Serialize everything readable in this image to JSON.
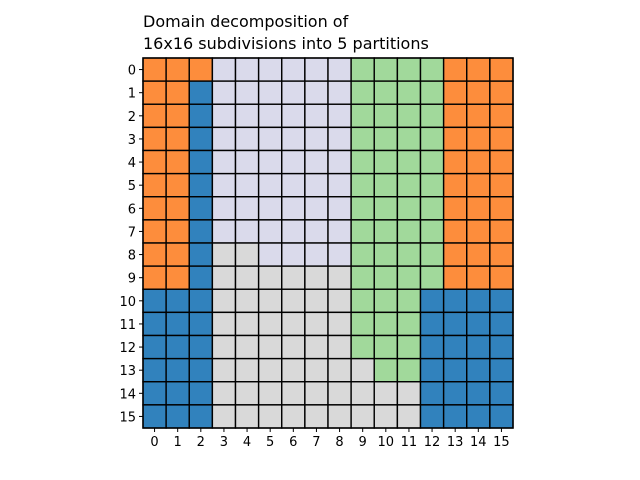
{
  "chart_data": {
    "type": "heatmap",
    "title_lines": [
      "Domain decomposition of",
      "16x16 subdivisions into 5 partitions"
    ],
    "x_ticks": [
      "0",
      "1",
      "2",
      "3",
      "4",
      "5",
      "6",
      "7",
      "8",
      "9",
      "10",
      "11",
      "12",
      "13",
      "14",
      "15"
    ],
    "y_ticks": [
      "0",
      "1",
      "2",
      "3",
      "4",
      "5",
      "6",
      "7",
      "8",
      "9",
      "10",
      "11",
      "12",
      "13",
      "14",
      "15"
    ],
    "partition_colors": [
      "#fd8d3c",
      "#3182bd",
      "#dadaeb",
      "#d9d9d9",
      "#a1d99b"
    ],
    "grid": [
      [
        0,
        0,
        0,
        2,
        2,
        2,
        2,
        2,
        2,
        4,
        4,
        4,
        4,
        0,
        0,
        0
      ],
      [
        0,
        0,
        1,
        2,
        2,
        2,
        2,
        2,
        2,
        4,
        4,
        4,
        4,
        0,
        0,
        0
      ],
      [
        0,
        0,
        1,
        2,
        2,
        2,
        2,
        2,
        2,
        4,
        4,
        4,
        4,
        0,
        0,
        0
      ],
      [
        0,
        0,
        1,
        2,
        2,
        2,
        2,
        2,
        2,
        4,
        4,
        4,
        4,
        0,
        0,
        0
      ],
      [
        0,
        0,
        1,
        2,
        2,
        2,
        2,
        2,
        2,
        4,
        4,
        4,
        4,
        0,
        0,
        0
      ],
      [
        0,
        0,
        1,
        2,
        2,
        2,
        2,
        2,
        2,
        4,
        4,
        4,
        4,
        0,
        0,
        0
      ],
      [
        0,
        0,
        1,
        2,
        2,
        2,
        2,
        2,
        2,
        4,
        4,
        4,
        4,
        0,
        0,
        0
      ],
      [
        0,
        0,
        1,
        2,
        2,
        2,
        2,
        2,
        2,
        4,
        4,
        4,
        4,
        0,
        0,
        0
      ],
      [
        0,
        0,
        1,
        3,
        3,
        2,
        2,
        2,
        2,
        4,
        4,
        4,
        4,
        0,
        0,
        0
      ],
      [
        0,
        0,
        1,
        3,
        3,
        3,
        3,
        3,
        3,
        4,
        4,
        4,
        4,
        0,
        0,
        0
      ],
      [
        1,
        1,
        1,
        3,
        3,
        3,
        3,
        3,
        3,
        4,
        4,
        4,
        1,
        1,
        1,
        1
      ],
      [
        1,
        1,
        1,
        3,
        3,
        3,
        3,
        3,
        3,
        4,
        4,
        4,
        1,
        1,
        1,
        1
      ],
      [
        1,
        1,
        1,
        3,
        3,
        3,
        3,
        3,
        3,
        4,
        4,
        4,
        1,
        1,
        1,
        1
      ],
      [
        1,
        1,
        1,
        3,
        3,
        3,
        3,
        3,
        3,
        3,
        4,
        4,
        1,
        1,
        1,
        1
      ],
      [
        1,
        1,
        1,
        3,
        3,
        3,
        3,
        3,
        3,
        3,
        3,
        3,
        1,
        1,
        1,
        1
      ],
      [
        1,
        1,
        1,
        3,
        3,
        3,
        3,
        3,
        3,
        3,
        3,
        3,
        1,
        1,
        1,
        1
      ]
    ]
  }
}
